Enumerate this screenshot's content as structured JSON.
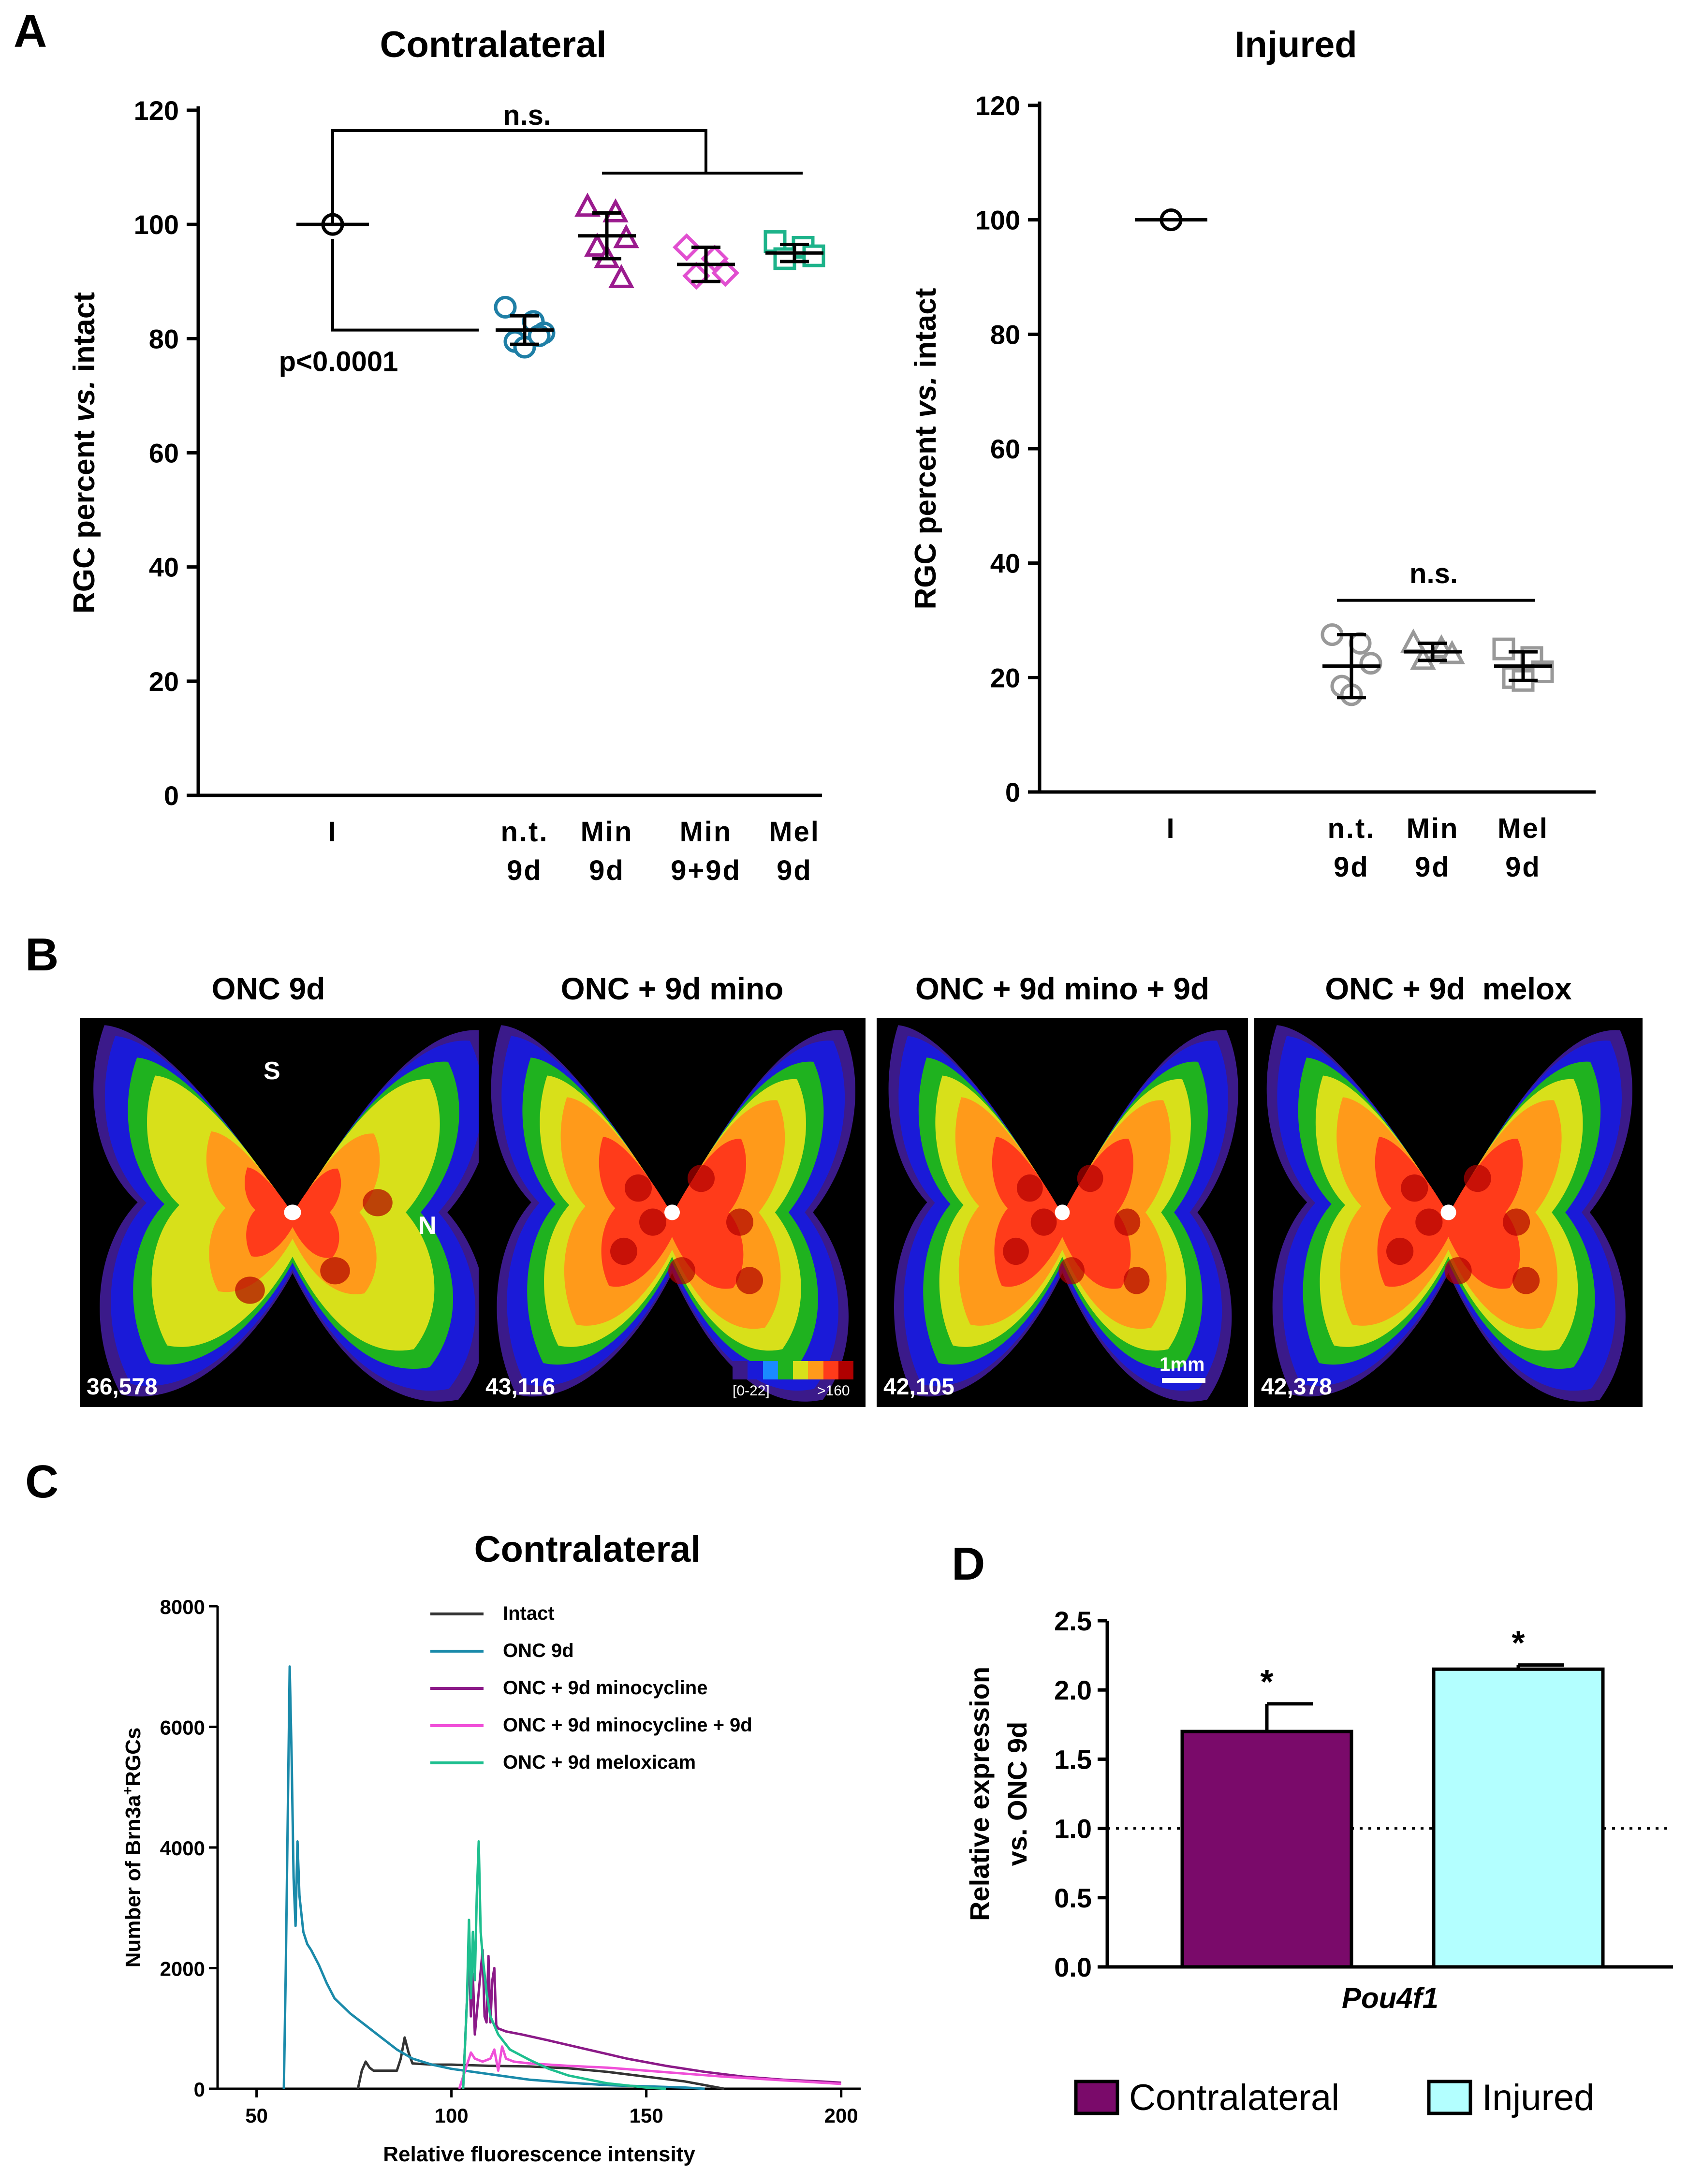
{
  "panels": {
    "A": "A",
    "B": "B",
    "C": "C",
    "D": "D"
  },
  "chart_data": [
    {
      "panel": "A-left",
      "type": "scatter",
      "title": "Contralateral",
      "ylabel": "RGC percent vs. intact",
      "ylabel_parts": [
        "RGC percent ",
        "vs.",
        " intact"
      ],
      "ylim": [
        0,
        120
      ],
      "yticks": [
        0,
        20,
        40,
        60,
        80,
        100,
        120
      ],
      "categories": [
        [
          "I"
        ],
        [
          "n.t.",
          "9d"
        ],
        [
          "Min",
          "9d"
        ],
        [
          "Min",
          "9+9d"
        ],
        [
          "Mel",
          "9d"
        ]
      ],
      "series": [
        {
          "marker": "circle",
          "color": "#000000",
          "mean": 100,
          "sd": 0,
          "points": [
            100
          ]
        },
        {
          "marker": "circle",
          "color": "#1f7fa6",
          "mean": 81.5,
          "sd": 2.5,
          "points": [
            85.5,
            83,
            81,
            79.5,
            78.5,
            80.5
          ]
        },
        {
          "marker": "triangle",
          "color": "#9b1b8e",
          "mean": 98,
          "sd": 4,
          "points": [
            103,
            102,
            97.5,
            96,
            94,
            90.5
          ]
        },
        {
          "marker": "diamond",
          "color": "#e14fd0",
          "mean": 93,
          "sd": 3,
          "points": [
            96,
            94,
            91.5,
            91
          ]
        },
        {
          "marker": "square",
          "color": "#1db38a",
          "mean": 95,
          "sd": 1.5,
          "points": [
            97,
            96,
            94.5,
            94
          ]
        }
      ],
      "annotations": {
        "ns": "n.s.",
        "p": "p<0.0001"
      }
    },
    {
      "panel": "A-right",
      "type": "scatter",
      "title": "Injured",
      "ylabel": "RGC percent vs. intact",
      "ylabel_parts": [
        "RGC percent ",
        "vs.",
        " intact"
      ],
      "ylim": [
        0,
        120
      ],
      "yticks": [
        0,
        20,
        40,
        60,
        80,
        100,
        120
      ],
      "categories": [
        [
          "I"
        ],
        [
          "n.t.",
          "9d"
        ],
        [
          "Min",
          "9d"
        ],
        [
          "Mel",
          "9d"
        ]
      ],
      "series": [
        {
          "marker": "circle",
          "color": "#000000",
          "mean": 100,
          "sd": 0,
          "points": [
            100
          ]
        },
        {
          "marker": "circle",
          "color": "#999999",
          "mean": 22,
          "sd": 5.5,
          "points": [
            27.5,
            26,
            22.5,
            18.5,
            17
          ]
        },
        {
          "marker": "triangle",
          "color": "#999999",
          "mean": 24.5,
          "sd": 1.5,
          "points": [
            26,
            25,
            24,
            23
          ]
        },
        {
          "marker": "square",
          "color": "#999999",
          "mean": 22,
          "sd": 2.5,
          "points": [
            25,
            23.5,
            21,
            20,
            19.5
          ]
        }
      ],
      "annotations": {
        "ns": "n.s."
      }
    },
    {
      "panel": "C",
      "type": "line",
      "title": "Contralateral",
      "xlabel": "Relative fluorescence intensity",
      "ylabel": "Number of Brn3a+RGCs",
      "ylabel_parts": [
        "Number of Brn3a",
        "+",
        "RGCs"
      ],
      "xlim": [
        40,
        205
      ],
      "ylim": [
        0,
        8000
      ],
      "xticks": [
        50,
        100,
        150,
        200
      ],
      "yticks": [
        0,
        2000,
        4000,
        6000,
        8000
      ],
      "series": [
        {
          "name": "Intact",
          "color": "#333333",
          "x": [
            76,
            77,
            78,
            79,
            80,
            86,
            87,
            88,
            89,
            90,
            95,
            100,
            110,
            120,
            130,
            140,
            150,
            160,
            165,
            170
          ],
          "y": [
            0,
            300,
            450,
            350,
            300,
            300,
            500,
            850,
            600,
            420,
            400,
            400,
            380,
            370,
            340,
            280,
            200,
            120,
            60,
            0
          ]
        },
        {
          "name": "ONC 9d",
          "color": "#1a8aaa",
          "x": [
            57,
            57.5,
            58,
            58.5,
            59,
            59.5,
            60,
            60.5,
            61,
            61.5,
            62,
            63,
            64,
            66,
            68,
            70,
            74,
            78,
            82,
            86,
            90,
            95,
            100,
            110,
            120,
            130,
            140,
            150,
            160,
            165
          ],
          "y": [
            0,
            2000,
            4500,
            7000,
            5500,
            3500,
            2700,
            4100,
            3200,
            2900,
            2600,
            2400,
            2300,
            2050,
            1750,
            1500,
            1250,
            1050,
            850,
            650,
            500,
            400,
            330,
            240,
            150,
            100,
            60,
            40,
            20,
            0
          ]
        },
        {
          "name": "ONC + 9d minocycline",
          "color": "#8b1a88",
          "x": [
            103,
            104,
            104.5,
            105,
            105.5,
            106,
            107,
            108,
            108.5,
            109,
            109.5,
            110,
            110.5,
            111,
            111.5,
            112,
            114,
            118,
            125,
            135,
            145,
            155,
            165,
            175,
            185,
            195,
            200
          ],
          "y": [
            0,
            1500,
            2300,
            1200,
            1900,
            900,
            1600,
            2300,
            1200,
            1100,
            2200,
            1100,
            1800,
            2000,
            1050,
            1000,
            950,
            900,
            800,
            650,
            500,
            380,
            280,
            200,
            150,
            120,
            100
          ]
        },
        {
          "name": "ONC + 9d minocycline + 9d",
          "color": "#f04fd8",
          "x": [
            102,
            103,
            104,
            105,
            106,
            108,
            110,
            111,
            112,
            113,
            114,
            116,
            120,
            130,
            140,
            150,
            160,
            170,
            180,
            190,
            200
          ],
          "y": [
            0,
            200,
            400,
            600,
            500,
            450,
            500,
            650,
            300,
            700,
            500,
            450,
            420,
            380,
            350,
            300,
            250,
            200,
            160,
            120,
            80
          ]
        },
        {
          "name": "ONC + 9d meloxicam",
          "color": "#1ebf8f",
          "x": [
            103,
            104,
            104.5,
            105,
            105.5,
            106,
            106.5,
            107,
            107.5,
            108,
            109,
            110,
            112,
            115,
            120,
            125,
            130,
            140,
            150,
            155
          ],
          "y": [
            0,
            1500,
            2800,
            1500,
            2600,
            1800,
            3200,
            4100,
            2600,
            2200,
            1600,
            1200,
            900,
            650,
            480,
            330,
            220,
            90,
            20,
            0
          ]
        }
      ]
    },
    {
      "panel": "D",
      "type": "bar",
      "ylabel": "Relative expression vs. ONC 9d",
      "ylabel_lines": [
        "Relative expression",
        "vs. ONC 9d"
      ],
      "ylim": [
        0,
        2.5
      ],
      "yticks": [
        "0.0",
        "0.5",
        "1.0",
        "1.5",
        "2.0",
        "2.5"
      ],
      "reference_line": 1.0,
      "xlabel": "Pou4f1",
      "series": [
        {
          "name": "Contralateral",
          "value": 1.7,
          "error": 0.2,
          "color": "#7a0a6a",
          "sig": "*"
        },
        {
          "name": "Injured",
          "value": 2.15,
          "error": 0.03,
          "color": "#b3ffff",
          "sig": "*"
        }
      ]
    }
  ],
  "retinas": {
    "items": [
      {
        "title": "ONC 9d",
        "count": "36,578"
      },
      {
        "title": "ONC + 9d mino",
        "count": "43,116"
      },
      {
        "title": "ONC + 9d mino + 9d",
        "count": "42,105"
      },
      {
        "title": "ONC + 9d  melox",
        "count": "42,378"
      }
    ],
    "orientation": {
      "superior": "S",
      "nasal": "N"
    },
    "colorbar": {
      "low": "[0-22]",
      "high": ">160",
      "colors": [
        "#3b1a8a",
        "#1a1ad8",
        "#1a8aff",
        "#1fb21f",
        "#d8e01a",
        "#ff9a1a",
        "#ff3b1a",
        "#b00000"
      ]
    },
    "scalebar": "1mm"
  }
}
